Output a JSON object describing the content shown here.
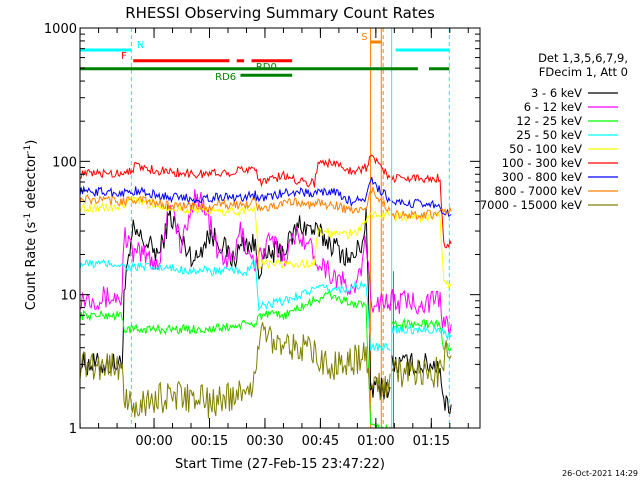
{
  "chart_data": {
    "type": "line",
    "title": "RHESSI Observing Summary Count Rates",
    "xlabel": "Start Time (27-Feb-15 23:47:22)",
    "ylabel_main": "Count Rate (s",
    "ylabel_sup1": "-1",
    "ylabel_mid": " detector",
    "ylabel_sup2": "-1",
    "ylabel_end": ")",
    "timestamp": "26-Oct-2021 14:29",
    "x_unit": "minutes after 23:47:22",
    "xlim": [
      -7.4,
      100.8
    ],
    "ylog": true,
    "ylim": [
      1,
      1000
    ],
    "xticks": [
      {
        "v": 12.63,
        "label": "00:00"
      },
      {
        "v": 27.63,
        "label": "00:15"
      },
      {
        "v": 42.63,
        "label": "00:30"
      },
      {
        "v": 57.63,
        "label": "00:45"
      },
      {
        "v": 72.63,
        "label": "01:00"
      },
      {
        "v": 87.63,
        "label": "01:15"
      }
    ],
    "yticks": [
      {
        "v": 1,
        "label": "1"
      },
      {
        "v": 10,
        "label": "10"
      },
      {
        "v": 100,
        "label": "100"
      },
      {
        "v": 1000,
        "label": "1000"
      }
    ],
    "legend_header": [
      "Det 1,3,5,6,7,9,",
      "FDecim 1, Att 0"
    ],
    "series": [
      {
        "name": "3 - 6 keV",
        "color": "#000000",
        "values": [
          [
            -7.4,
            3
          ],
          [
            4,
            3
          ],
          [
            4.5,
            10
          ],
          [
            7,
            30
          ],
          [
            10,
            25
          ],
          [
            14,
            20
          ],
          [
            17,
            40
          ],
          [
            20,
            25
          ],
          [
            24,
            18
          ],
          [
            27,
            28
          ],
          [
            30,
            26
          ],
          [
            34,
            18
          ],
          [
            37,
            25
          ],
          [
            40,
            23
          ],
          [
            41,
            16
          ],
          [
            44,
            20
          ],
          [
            48,
            22
          ],
          [
            52,
            34
          ],
          [
            56,
            30
          ],
          [
            60,
            25
          ],
          [
            64,
            20
          ],
          [
            66,
            18
          ],
          [
            69,
            25
          ],
          [
            70,
            40
          ],
          [
            71.2,
            2
          ],
          [
            76.8,
            2
          ],
          [
            77,
            3
          ],
          [
            90,
            3
          ],
          [
            91,
            1.5
          ],
          [
            93,
            1.5
          ]
        ]
      },
      {
        "name": "6 - 12 keV",
        "color": "#ff00ff",
        "values": [
          [
            -7.4,
            9.5
          ],
          [
            4,
            9.5
          ],
          [
            4.5,
            30
          ],
          [
            7,
            20
          ],
          [
            10,
            20
          ],
          [
            14,
            17
          ],
          [
            17,
            55
          ],
          [
            20,
            22
          ],
          [
            24,
            60
          ],
          [
            27,
            40
          ],
          [
            30,
            20
          ],
          [
            34,
            18
          ],
          [
            36,
            30
          ],
          [
            38,
            22
          ],
          [
            40,
            17
          ],
          [
            44,
            25
          ],
          [
            48,
            20
          ],
          [
            52,
            30
          ],
          [
            56,
            20
          ],
          [
            60,
            15
          ],
          [
            64,
            12
          ],
          [
            67,
            10
          ],
          [
            70,
            25
          ],
          [
            71.2,
            9
          ],
          [
            76.8,
            9
          ],
          [
            78,
            8.8
          ],
          [
            90,
            8.8
          ],
          [
            91,
            6
          ],
          [
            93,
            6
          ]
        ]
      },
      {
        "name": "12 - 25 keV",
        "color": "#00ff00",
        "values": [
          [
            -7.4,
            7
          ],
          [
            4,
            7
          ],
          [
            4.5,
            5.5
          ],
          [
            20,
            5.5
          ],
          [
            28,
            5.5
          ],
          [
            38,
            6
          ],
          [
            40,
            6
          ],
          [
            41,
            7
          ],
          [
            48,
            7
          ],
          [
            52,
            8
          ],
          [
            56,
            9
          ],
          [
            60,
            10
          ],
          [
            64,
            9
          ],
          [
            70,
            8
          ],
          [
            71.2,
            1
          ],
          [
            76.8,
            1
          ],
          [
            77,
            6
          ],
          [
            90,
            6
          ],
          [
            91,
            4
          ],
          [
            93,
            4
          ]
        ]
      },
      {
        "name": "25 - 50 keV",
        "color": "#00ffff",
        "values": [
          [
            -7.4,
            17
          ],
          [
            4,
            17
          ],
          [
            4.5,
            16
          ],
          [
            10,
            16
          ],
          [
            28,
            15
          ],
          [
            38,
            15
          ],
          [
            40,
            17
          ],
          [
            41,
            8
          ],
          [
            48,
            9
          ],
          [
            52,
            10
          ],
          [
            56,
            11
          ],
          [
            60,
            11
          ],
          [
            64,
            11
          ],
          [
            70,
            12
          ],
          [
            71.2,
            4
          ],
          [
            76.8,
            4
          ],
          [
            77,
            5.5
          ],
          [
            90,
            5.5
          ],
          [
            91,
            5
          ],
          [
            93,
            5
          ]
        ]
      },
      {
        "name": "50 - 100 keV",
        "color": "#ffff00",
        "values": [
          [
            -7.4,
            45
          ],
          [
            4,
            45
          ],
          [
            6,
            52
          ],
          [
            10,
            48
          ],
          [
            20,
            44
          ],
          [
            28,
            42
          ],
          [
            36,
            42
          ],
          [
            40,
            45
          ],
          [
            41,
            17
          ],
          [
            48,
            17
          ],
          [
            52,
            17
          ],
          [
            56,
            17
          ],
          [
            57,
            30
          ],
          [
            64,
            28
          ],
          [
            68,
            30
          ],
          [
            70,
            36
          ],
          [
            71.2,
            40
          ],
          [
            76.8,
            40
          ],
          [
            77,
            38
          ],
          [
            90,
            38
          ],
          [
            91,
            12
          ],
          [
            93,
            12
          ]
        ]
      },
      {
        "name": "100 - 300 keV",
        "color": "#ff0000",
        "values": [
          [
            -7.4,
            80
          ],
          [
            4,
            82
          ],
          [
            8,
            92
          ],
          [
            14,
            85
          ],
          [
            24,
            80
          ],
          [
            30,
            82
          ],
          [
            36,
            85
          ],
          [
            40,
            92
          ],
          [
            41,
            70
          ],
          [
            48,
            78
          ],
          [
            52,
            72
          ],
          [
            56,
            68
          ],
          [
            57,
            100
          ],
          [
            62,
            95
          ],
          [
            66,
            85
          ],
          [
            70,
            90
          ],
          [
            71.2,
            110
          ],
          [
            76.8,
            75
          ],
          [
            77,
            75
          ],
          [
            90,
            75
          ],
          [
            91,
            24
          ],
          [
            93,
            24
          ]
        ]
      },
      {
        "name": "300 - 800 keV",
        "color": "#0000ff",
        "values": [
          [
            -7.4,
            60
          ],
          [
            4,
            58
          ],
          [
            8,
            60
          ],
          [
            14,
            55
          ],
          [
            24,
            52
          ],
          [
            30,
            54
          ],
          [
            36,
            54
          ],
          [
            40,
            56
          ],
          [
            41,
            52
          ],
          [
            48,
            58
          ],
          [
            52,
            60
          ],
          [
            56,
            56
          ],
          [
            57,
            60
          ],
          [
            62,
            58
          ],
          [
            66,
            50
          ],
          [
            70,
            52
          ],
          [
            71.2,
            72
          ],
          [
            76.8,
            50
          ],
          [
            77,
            48
          ],
          [
            90,
            48
          ],
          [
            91,
            40
          ],
          [
            93,
            40
          ]
        ]
      },
      {
        "name": "800 - 7000 keV",
        "color": "#ff8000",
        "values": [
          [
            -7.4,
            52
          ],
          [
            4,
            50
          ],
          [
            8,
            52
          ],
          [
            14,
            48
          ],
          [
            24,
            45
          ],
          [
            30,
            47
          ],
          [
            36,
            47
          ],
          [
            40,
            50
          ],
          [
            41,
            44
          ],
          [
            48,
            48
          ],
          [
            52,
            50
          ],
          [
            56,
            46
          ],
          [
            57,
            48
          ],
          [
            62,
            47
          ],
          [
            66,
            42
          ],
          [
            70,
            44
          ],
          [
            71.2,
            62
          ],
          [
            76.8,
            42
          ],
          [
            77,
            40
          ],
          [
            90,
            40
          ],
          [
            91,
            42
          ],
          [
            93,
            42
          ]
        ]
      },
      {
        "name": "7000 - 15000 keV",
        "color": "#808000",
        "values": [
          [
            -7.4,
            3
          ],
          [
            4,
            3
          ],
          [
            4.5,
            1.5
          ],
          [
            10,
            1.5
          ],
          [
            14,
            1.7
          ],
          [
            24,
            1.7
          ],
          [
            28,
            1.5
          ],
          [
            38,
            2
          ],
          [
            40,
            2.2
          ],
          [
            41,
            5
          ],
          [
            48,
            4.5
          ],
          [
            52,
            4
          ],
          [
            56,
            3.5
          ],
          [
            60,
            3
          ],
          [
            64,
            3
          ],
          [
            70,
            3.5
          ],
          [
            71.2,
            2
          ],
          [
            76.8,
            2
          ],
          [
            77,
            2.6
          ],
          [
            90,
            2.6
          ],
          [
            91,
            3.5
          ],
          [
            93,
            3.5
          ]
        ]
      }
    ],
    "flags": [
      {
        "label": "N",
        "color": "#00ffff",
        "y_frac": 0.945,
        "segments": [
          [
            -7.4,
            6.5
          ],
          [
            78,
            92.5
          ]
        ]
      },
      {
        "label": "S",
        "color": "#ff8000",
        "y_frac": 0.965,
        "segments": [
          [
            71.2,
            74.2
          ]
        ]
      },
      {
        "label": "F",
        "color": "#ff0000",
        "y_frac": 0.918,
        "segments": [
          [
            7,
            33
          ],
          [
            35,
            37
          ],
          [
            39,
            50
          ]
        ]
      },
      {
        "label": "RD0",
        "color": "#008000",
        "y_frac": 0.898,
        "segments": [
          [
            -7.4,
            84
          ],
          [
            87,
            92.5
          ]
        ]
      },
      {
        "label": "RD6",
        "color": "#008000",
        "y_frac": 0.882,
        "segments": [
          [
            36,
            50
          ]
        ]
      }
    ],
    "vlines": [
      {
        "x": -7.4,
        "color": "#00ffff",
        "dashed": false
      },
      {
        "x": 6.5,
        "color": "#00ffff",
        "dashed": true
      },
      {
        "x": 71.2,
        "color": "#ff8000",
        "dashed": false
      },
      {
        "x": 74.1,
        "color": "#ff8000",
        "dashed": false
      },
      {
        "x": 74.6,
        "color": "#ff8000",
        "dashed": true
      },
      {
        "x": 76.9,
        "color": "#00ffff",
        "dashed": false
      },
      {
        "x": 92.5,
        "color": "#00ffff",
        "dashed": true
      }
    ],
    "green_vline": {
      "x": 77.4,
      "color": "#00c000"
    }
  }
}
